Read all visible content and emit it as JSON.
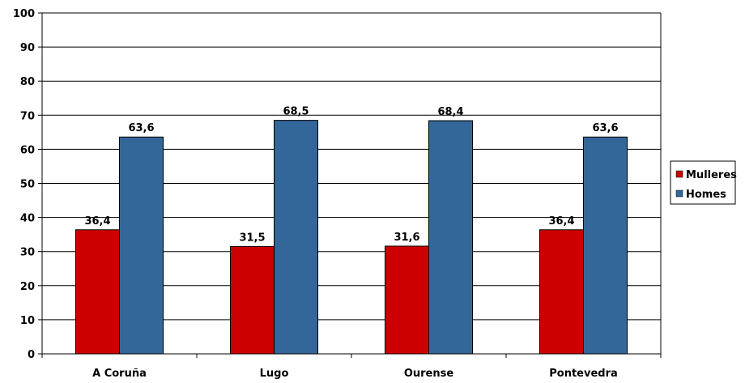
{
  "chart_data": {
    "type": "bar",
    "title": "",
    "xlabel": "",
    "ylabel": "",
    "categories": [
      "A Coruña",
      "Lugo",
      "Ourense",
      "Pontevedra"
    ],
    "series": [
      {
        "name": "Mulleres",
        "color": "#cc0000",
        "values": [
          36.4,
          31.5,
          31.6,
          36.4
        ],
        "labels": [
          "36,4",
          "31,5",
          "31,6",
          "36,4"
        ]
      },
      {
        "name": "Homes",
        "color": "#336699",
        "values": [
          63.6,
          68.5,
          68.4,
          63.6
        ],
        "labels": [
          "63,6",
          "68,5",
          "68,4",
          "63,6"
        ]
      }
    ],
    "ylim": [
      0,
      100
    ],
    "yticks": [
      0,
      10,
      20,
      30,
      40,
      50,
      60,
      70,
      80,
      90,
      100
    ],
    "grid": true,
    "legend_position": "right"
  }
}
